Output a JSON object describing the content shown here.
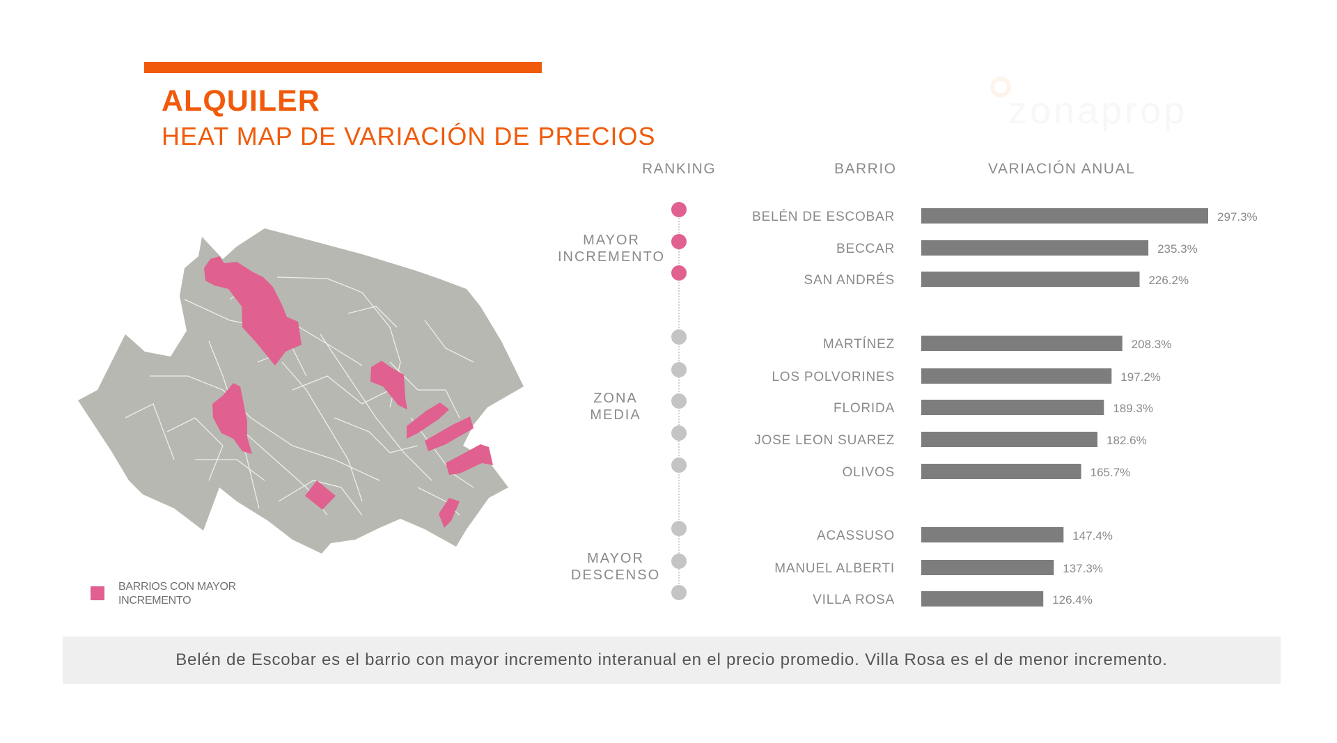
{
  "header": {
    "title": "ALQUILER",
    "subtitle": "HEAT MAP DE VARIACIÓN DE PRECIOS"
  },
  "brand": {
    "logo_text": "zonaprop",
    "accent_color": "#f05a0a",
    "highlight_color": "#e0608f",
    "neutral_color": "#b8b8b2",
    "bar_color": "#7d7d7d"
  },
  "columns": {
    "ranking": "RANKING",
    "barrio": "BARRIO",
    "variacion": "VARIACIÓN ANUAL"
  },
  "groups": {
    "top": [
      "MAYOR",
      "INCREMENTO"
    ],
    "mid": [
      "ZONA",
      "MEDIA"
    ],
    "bottom": [
      "MAYOR",
      "DESCENSO"
    ]
  },
  "legend": {
    "label": "BARRIOS CON MAYOR INCREMENTO"
  },
  "chart_data": {
    "type": "bar",
    "orientation": "horizontal",
    "categories": [
      "BELÉN DE ESCOBAR",
      "BECCAR",
      "SAN ANDRÉS",
      "MARTÍNEZ",
      "LOS POLVORINES",
      "FLORIDA",
      "JOSE LEON SUAREZ",
      "OLIVOS",
      "ACASSUSO",
      "MANUEL ALBERTI",
      "VILLA ROSA"
    ],
    "values": [
      297.3,
      235.3,
      226.2,
      208.3,
      197.2,
      189.3,
      182.6,
      165.7,
      147.4,
      137.3,
      126.4
    ],
    "value_labels": [
      "297.3%",
      "235.3%",
      "226.2%",
      "208.3%",
      "197.2%",
      "189.3%",
      "182.6%",
      "165.7%",
      "147.4%",
      "137.3%",
      "126.4%"
    ],
    "groups": [
      "top",
      "top",
      "top",
      "mid",
      "mid",
      "mid",
      "mid",
      "mid",
      "bottom",
      "bottom",
      "bottom"
    ],
    "xlim": [
      0,
      297.3
    ],
    "grid": false,
    "unit": "%"
  },
  "footer": {
    "text": "Belén de Escobar es el barrio con mayor incremento interanual en el precio promedio. Villa Rosa es el de menor incremento."
  }
}
